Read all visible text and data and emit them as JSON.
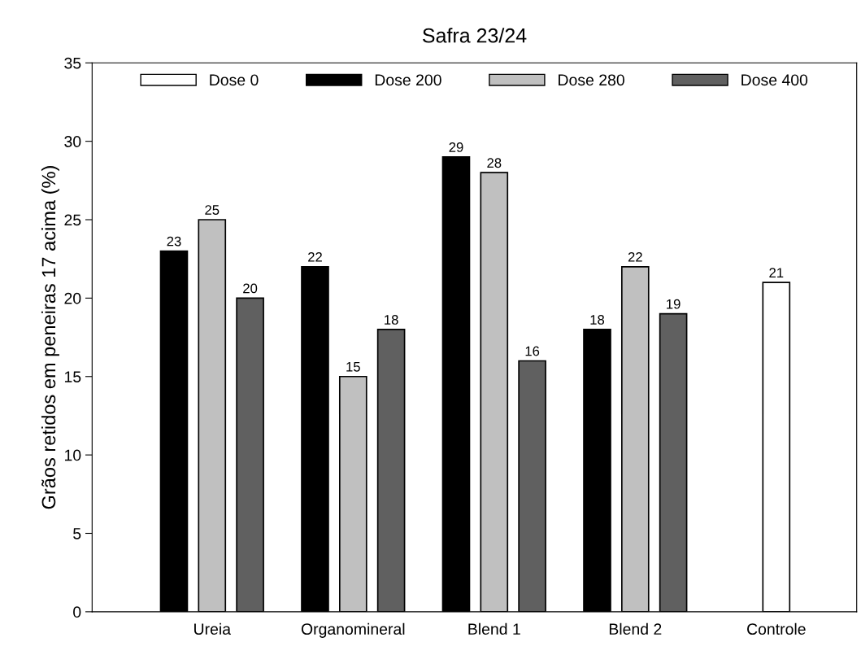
{
  "chart_data": {
    "type": "bar",
    "title": "Safra 23/24",
    "ylabel": "Grãos retidos em peneiras 17 acima (%)",
    "categories": [
      "Ureia",
      "Organomineral",
      "Blend 1",
      "Blend 2",
      "Controle"
    ],
    "series": [
      {
        "name": "Dose 0",
        "color": "#ffffff",
        "values": [
          null,
          null,
          null,
          null,
          21
        ]
      },
      {
        "name": "Dose 200",
        "color": "#000000",
        "values": [
          23,
          22,
          29,
          18,
          null
        ]
      },
      {
        "name": "Dose 280",
        "color": "#c0c0c0",
        "values": [
          25,
          15,
          28,
          22,
          null
        ]
      },
      {
        "name": "Dose 400",
        "color": "#606060",
        "values": [
          20,
          18,
          16,
          19,
          null
        ]
      }
    ],
    "ylim": [
      0,
      35
    ],
    "yticks": [
      0,
      5,
      10,
      15,
      20,
      25,
      30,
      35
    ],
    "data_labels": true,
    "legend": "top",
    "grid": false
  }
}
